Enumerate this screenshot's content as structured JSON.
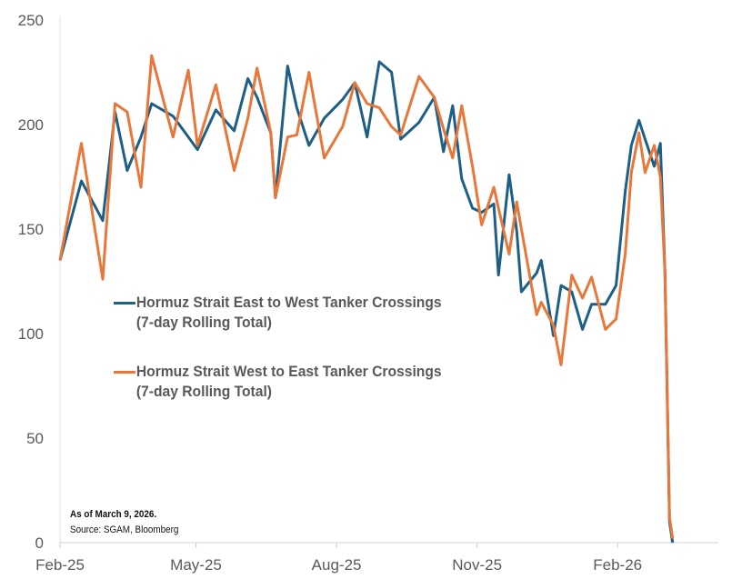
{
  "chart_data": {
    "type": "line",
    "title": "",
    "xlabel": "",
    "ylabel": "",
    "ylim": [
      0,
      250
    ],
    "yticks": [
      "0",
      "50",
      "100",
      "150",
      "200",
      "250"
    ],
    "xlim": [
      "2025-02-01",
      "2026-03-31"
    ],
    "xticks": [
      {
        "date": "2025-02-01",
        "label": "Feb-25"
      },
      {
        "date": "2025-05-01",
        "label": "May-25"
      },
      {
        "date": "2025-08-01",
        "label": "Aug-25"
      },
      {
        "date": "2025-11-01",
        "label": "Nov-25"
      },
      {
        "date": "2026-02-01",
        "label": "Feb-26"
      }
    ],
    "grid": false,
    "legend_position": "center-left",
    "x": [
      "2025-02-01",
      "2025-02-15",
      "2025-03-01",
      "2025-03-09",
      "2025-03-17",
      "2025-03-26",
      "2025-04-02",
      "2025-04-16",
      "2025-04-26",
      "2025-05-02",
      "2025-05-14",
      "2025-05-26",
      "2025-06-04",
      "2025-06-10",
      "2025-06-19",
      "2025-06-22",
      "2025-06-30",
      "2025-07-06",
      "2025-07-14",
      "2025-07-24",
      "2025-08-05",
      "2025-08-13",
      "2025-08-21",
      "2025-08-29",
      "2025-09-06",
      "2025-09-12",
      "2025-09-24",
      "2025-10-04",
      "2025-10-10",
      "2025-10-16",
      "2025-10-22",
      "2025-10-29",
      "2025-11-04",
      "2025-11-12",
      "2025-11-15",
      "2025-11-22",
      "2025-11-27",
      "2025-11-30",
      "2025-12-10",
      "2025-12-13",
      "2025-12-21",
      "2025-12-26",
      "2026-01-02",
      "2026-01-09",
      "2026-01-15",
      "2026-01-24",
      "2026-01-31",
      "2026-02-06",
      "2026-02-10",
      "2026-02-15",
      "2026-02-19",
      "2026-02-25",
      "2026-03-01",
      "2026-03-04",
      "2026-03-07",
      "2026-03-09"
    ],
    "series": [
      {
        "name": "Hormuz Strait East to West Tanker Crossings (7-day Rolling Total)",
        "color": "#1d5f86",
        "values": [
          135,
          173,
          154,
          206,
          178,
          194,
          210,
          204,
          194,
          188,
          207,
          197,
          222,
          213,
          196,
          165,
          228,
          208,
          190,
          203,
          212,
          220,
          194,
          230,
          225,
          193,
          201,
          213,
          187,
          209,
          174,
          160,
          158,
          162,
          128,
          176,
          149,
          120,
          129,
          135,
          99,
          123,
          120,
          102,
          114,
          114,
          123,
          168,
          190,
          202,
          193,
          180,
          191,
          129,
          10,
          0
        ]
      },
      {
        "name": "Hormuz Strait West to East Tanker Crossings (7-day Rolling Total)",
        "color": "#e8773a",
        "values": [
          135,
          191,
          126,
          210,
          206,
          170,
          233,
          194,
          226,
          190,
          219,
          178,
          203,
          227,
          196,
          165,
          194,
          195,
          225,
          184,
          199,
          220,
          210,
          208,
          199,
          195,
          223,
          213,
          198,
          184,
          209,
          180,
          152,
          170,
          160,
          138,
          163,
          150,
          109,
          115,
          104,
          85,
          128,
          117,
          127,
          102,
          107,
          138,
          177,
          196,
          177,
          190,
          175,
          129,
          12,
          2
        ]
      }
    ],
    "legend": [
      {
        "line1": "Hormuz Strait East to West Tanker Crossings",
        "line2": "(7-day Rolling Total)",
        "color": "#1d5f86"
      },
      {
        "line1": "Hormuz Strait West to East Tanker Crossings",
        "line2": "(7-day Rolling Total)",
        "color": "#e8773a"
      }
    ],
    "annotations": {
      "as_of": "As of March 9, 2026.",
      "source": "Source:  SGAM, Bloomberg"
    }
  }
}
